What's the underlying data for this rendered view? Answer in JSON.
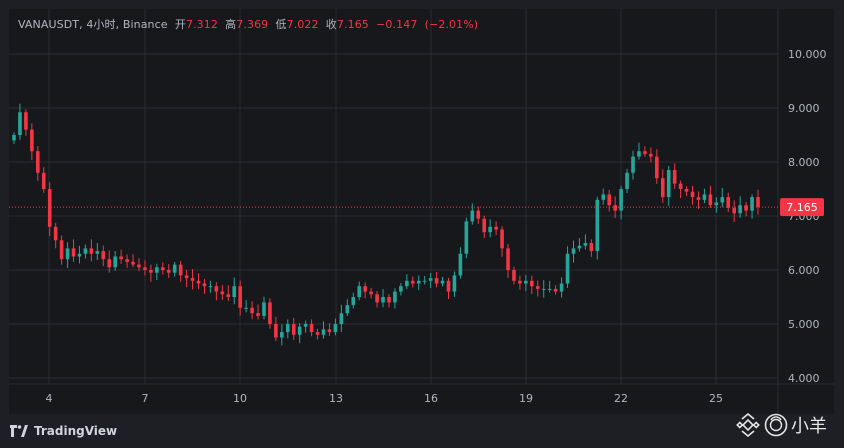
{
  "header": {
    "symbol": "VANAUSDT",
    "interval": "4小时",
    "exchange": "Binance",
    "open_label": "开",
    "open": "7.312",
    "high_label": "高",
    "high": "7.369",
    "low_label": "低",
    "low": "7.022",
    "close_label": "收",
    "close": "7.165",
    "change": "−0.147",
    "change_pct": "(−2.01%)"
  },
  "footer": {
    "brand": "TradingView",
    "watermark": "小羊"
  },
  "colors": {
    "up": "#26a69a",
    "down": "#f23645",
    "background": "#17181c",
    "grid": "#2a2d35",
    "axis_text": "#b2b5be"
  },
  "chart_data": {
    "type": "candlestick",
    "title": "VANAUSDT, 4小时, Binance",
    "xlabel": "",
    "ylabel": "",
    "y_ticks": [
      "4.000",
      "5.000",
      "6.000",
      "7.000",
      "8.000",
      "9.000",
      "10.000"
    ],
    "x_ticks": [
      "4",
      "7",
      "10",
      "13",
      "16",
      "19",
      "22",
      "25"
    ],
    "ylim": [
      3.85,
      10.5
    ],
    "last_price": "7.165",
    "grid": true,
    "series_close": [
      8.5,
      8.92,
      8.6,
      8.2,
      7.8,
      7.5,
      6.8,
      6.55,
      6.2,
      6.4,
      6.25,
      6.3,
      6.4,
      6.3,
      6.35,
      6.2,
      6.05,
      6.25,
      6.2,
      6.15,
      6.1,
      6.05,
      6.0,
      5.95,
      6.05,
      6.0,
      5.95,
      6.1,
      5.9,
      5.85,
      5.8,
      5.75,
      5.7,
      5.7,
      5.6,
      5.55,
      5.5,
      5.7,
      5.3,
      5.3,
      5.2,
      5.15,
      5.4,
      5.0,
      4.75,
      4.85,
      5.0,
      4.8,
      4.95,
      5.0,
      4.85,
      4.8,
      4.9,
      4.85,
      5.0,
      5.2,
      5.35,
      5.5,
      5.7,
      5.6,
      5.55,
      5.4,
      5.5,
      5.4,
      5.6,
      5.7,
      5.8,
      5.75,
      5.8,
      5.8,
      5.85,
      5.75,
      5.8,
      5.6,
      5.9,
      6.3,
      6.9,
      7.1,
      6.95,
      6.7,
      6.8,
      6.75,
      6.4,
      6.0,
      5.8,
      5.75,
      5.8,
      5.7,
      5.65,
      5.65,
      5.65,
      5.6,
      5.75,
      6.3,
      6.4,
      6.45,
      6.5,
      6.35,
      7.3,
      7.4,
      7.2,
      7.1,
      7.5,
      7.8,
      8.1,
      8.2,
      8.15,
      8.1,
      7.7,
      7.35,
      7.85,
      7.6,
      7.5,
      7.45,
      7.35,
      7.3,
      7.4,
      7.2,
      7.25,
      7.35,
      7.15,
      7.05,
      7.2,
      7.1,
      7.35,
      7.17
    ]
  }
}
